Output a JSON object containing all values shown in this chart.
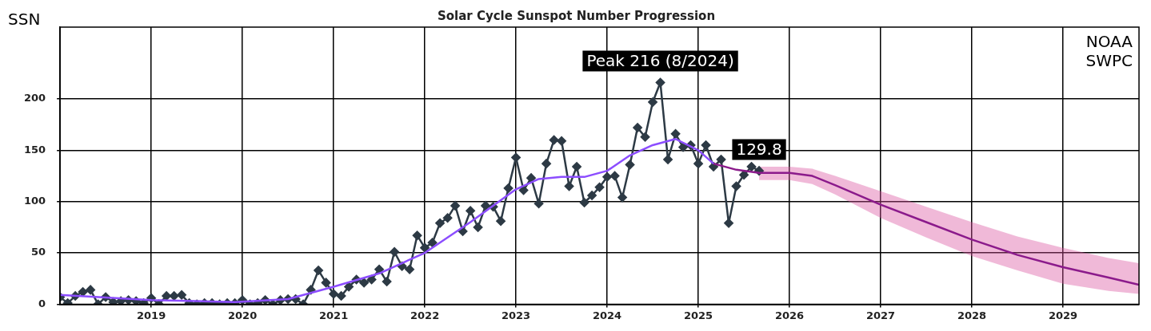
{
  "chart_data": {
    "type": "line",
    "title": "Solar Cycle Sunspot Number Progression",
    "ylabel": "SSN",
    "xlim": [
      "2018-01",
      "2029-11"
    ],
    "xticks": [
      "2019",
      "2020",
      "2021",
      "2022",
      "2023",
      "2024",
      "2025",
      "2026",
      "2027",
      "2028",
      "2029"
    ],
    "ylim": [
      0,
      270
    ],
    "yticks": [
      0,
      50,
      100,
      150,
      200
    ],
    "grid": true,
    "legend": false,
    "series": [
      {
        "color": "#2d3a45",
        "marker": "diamond",
        "x": [
          "2018-01",
          "2018-02",
          "2018-03",
          "2018-04",
          "2018-05",
          "2018-06",
          "2018-07",
          "2018-08",
          "2018-09",
          "2018-10",
          "2018-11",
          "2018-12",
          "2019-01",
          "2019-02",
          "2019-03",
          "2019-04",
          "2019-05",
          "2019-06",
          "2019-07",
          "2019-08",
          "2019-09",
          "2019-10",
          "2019-11",
          "2019-12",
          "2020-01",
          "2020-02",
          "2020-03",
          "2020-04",
          "2020-05",
          "2020-06",
          "2020-07",
          "2020-08",
          "2020-09",
          "2020-10",
          "2020-11",
          "2020-12",
          "2021-01",
          "2021-02",
          "2021-03",
          "2021-04",
          "2021-05",
          "2021-06",
          "2021-07",
          "2021-08",
          "2021-09",
          "2021-10",
          "2021-11",
          "2021-12",
          "2022-01",
          "2022-02",
          "2022-03",
          "2022-04",
          "2022-05",
          "2022-06",
          "2022-07",
          "2022-08",
          "2022-09",
          "2022-10",
          "2022-11",
          "2022-12",
          "2023-01",
          "2023-02",
          "2023-03",
          "2023-04",
          "2023-05",
          "2023-06",
          "2023-07",
          "2023-08",
          "2023-09",
          "2023-10",
          "2023-11",
          "2023-12",
          "2024-01",
          "2024-02",
          "2024-03",
          "2024-04",
          "2024-05",
          "2024-06",
          "2024-07",
          "2024-08",
          "2024-09",
          "2024-10",
          "2024-11",
          "2024-12",
          "2025-01",
          "2025-02",
          "2025-03",
          "2025-04",
          "2025-05",
          "2025-06",
          "2025-07",
          "2025-08",
          "2025-09"
        ],
        "values": [
          7,
          1,
          8,
          12,
          14,
          0,
          7,
          2,
          3,
          4,
          3,
          1,
          6,
          0,
          8,
          8,
          9,
          1,
          0,
          1,
          1,
          0,
          1,
          1,
          4,
          0,
          1,
          4,
          0,
          4,
          5,
          5,
          0,
          14,
          33,
          21,
          10,
          8,
          17,
          24,
          21,
          24,
          34,
          22,
          51,
          37,
          34,
          67,
          55,
          60,
          79,
          84,
          96,
          71,
          91,
          75,
          96,
          95,
          81,
          113,
          143,
          111,
          123,
          98,
          137,
          160,
          159,
          115,
          134,
          99,
          106,
          114,
          124,
          125,
          104,
          136,
          172,
          163,
          197,
          216,
          141,
          166,
          153,
          155,
          137,
          155,
          134,
          141,
          79,
          115,
          126,
          134,
          130
        ]
      },
      {
        "color": "#8c4dff",
        "marker": "none",
        "x": [
          "2018-01",
          "2018-07",
          "2019-01",
          "2019-07",
          "2019-12",
          "2020-07",
          "2021-01",
          "2021-07",
          "2022-01",
          "2022-07",
          "2023-01",
          "2023-04",
          "2023-07",
          "2023-10",
          "2024-01",
          "2024-04",
          "2024-07",
          "2024-10",
          "2025-01",
          "2025-03"
        ],
        "values": [
          9,
          6.5,
          4,
          3,
          2,
          5,
          17,
          30,
          50,
          80,
          112,
          122,
          124,
          124,
          130,
          145,
          155,
          161,
          150,
          137
        ]
      },
      {
        "color": "#8b1a8b",
        "marker": "none",
        "x": [
          "2025-03",
          "2025-06",
          "2025-09",
          "2026-01",
          "2026-04",
          "2026-07",
          "2027-01",
          "2027-07",
          "2028-01",
          "2028-07",
          "2029-01",
          "2029-07",
          "2029-11"
        ],
        "values": [
          137,
          131,
          128,
          128,
          125,
          116,
          97,
          80,
          63,
          48,
          36,
          26,
          19
        ],
        "lower": [
          null,
          null,
          121,
          121,
          117,
          107,
          84,
          65,
          47,
          33,
          20,
          13,
          10
        ],
        "upper": [
          null,
          null,
          134,
          134,
          132,
          125,
          110,
          95,
          80,
          66,
          55,
          45,
          40
        ]
      }
    ],
    "annotations": [
      {
        "text": "Peak 216 (8/2024)",
        "x": "2024-08",
        "y": 216
      },
      {
        "text": "129.8",
        "x": "2025-09",
        "y": 129.8
      },
      "NOAA SWPC"
    ]
  }
}
